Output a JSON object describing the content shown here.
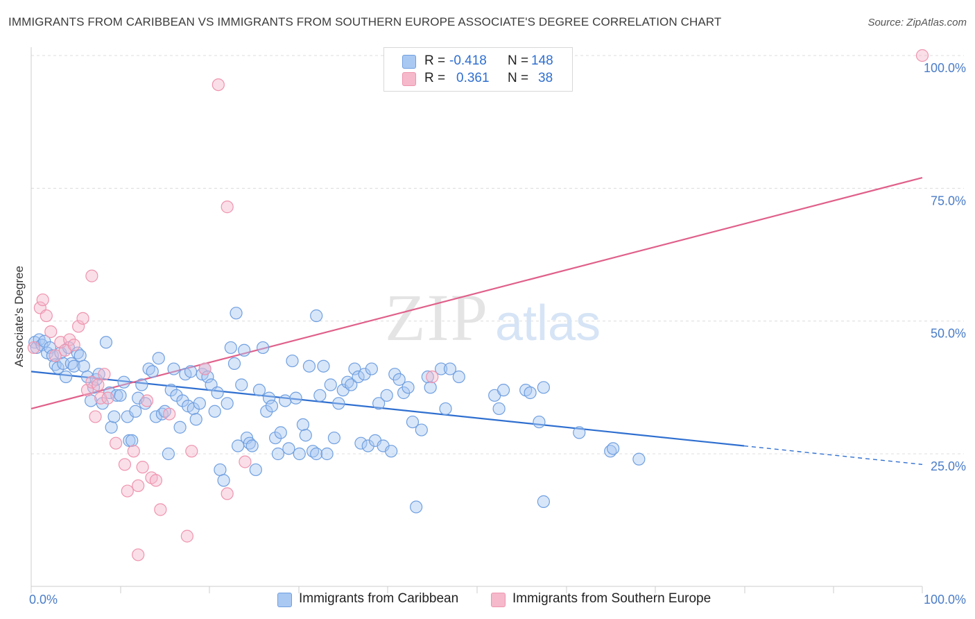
{
  "title": "IMMIGRANTS FROM CARIBBEAN VS IMMIGRANTS FROM SOUTHERN EUROPE ASSOCIATE'S DEGREE CORRELATION CHART",
  "source": "Source: ZipAtlas.com",
  "watermark": {
    "zip": "ZIP",
    "atlas": "atlas"
  },
  "legend": {
    "rows": [
      {
        "r_label": "R =",
        "r_value": "-0.418",
        "n_label": "N =",
        "n_value": "148",
        "color": "#a9c8f2"
      },
      {
        "r_label": "R =",
        "r_value": "0.361",
        "n_label": "N =",
        "n_value": "38",
        "color": "#f5b9cb"
      }
    ]
  },
  "chart_data": {
    "type": "scatter",
    "title": "IMMIGRANTS FROM CARIBBEAN VS IMMIGRANTS FROM SOUTHERN EUROPE ASSOCIATE'S DEGREE CORRELATION CHART",
    "xlabel": "",
    "ylabel": "Associate's Degree",
    "xlim": [
      0,
      100
    ],
    "ylim": [
      0,
      104
    ],
    "x_tick_labels": [
      "0.0%",
      "100.0%"
    ],
    "y_ticks": [
      {
        "value": 25,
        "label": "25.0%"
      },
      {
        "value": 50,
        "label": "50.0%"
      },
      {
        "value": 75,
        "label": "75.0%"
      },
      {
        "value": 100,
        "label": "100.0%"
      }
    ],
    "grid": true,
    "legend_position": "bottom",
    "series": [
      {
        "name": "Immigrants from Caribbean",
        "color": "#6f9fe0",
        "fill": "#a9c8f2",
        "trend": {
          "x0": 0,
          "y0": 40.5,
          "x1": 80,
          "y1": 26.5,
          "dashed_to_x": 100,
          "dashed_to_y": 23.0,
          "color": "#2f6fd0"
        },
        "points": [
          [
            0.4,
            46
          ],
          [
            0.6,
            45
          ],
          [
            0.9,
            46.5
          ],
          [
            1.2,
            45.5
          ],
          [
            1.5,
            46.2
          ],
          [
            1.8,
            44
          ],
          [
            2.1,
            45
          ],
          [
            2.4,
            43.5
          ],
          [
            2.7,
            41.8
          ],
          [
            3.0,
            41.2
          ],
          [
            3.3,
            44
          ],
          [
            3.6,
            42
          ],
          [
            3.9,
            39.5
          ],
          [
            4.2,
            45
          ],
          [
            4.5,
            42
          ],
          [
            4.8,
            41.5
          ],
          [
            5.2,
            44
          ],
          [
            5.5,
            43.5
          ],
          [
            5.9,
            41.5
          ],
          [
            6.3,
            39.5
          ],
          [
            6.7,
            35
          ],
          [
            7.0,
            37.5
          ],
          [
            7.3,
            39
          ],
          [
            7.6,
            40
          ],
          [
            8.0,
            34.5
          ],
          [
            8.4,
            46
          ],
          [
            8.8,
            36.5
          ],
          [
            9.0,
            30
          ],
          [
            9.3,
            32
          ],
          [
            9.6,
            36
          ],
          [
            10.0,
            36
          ],
          [
            10.4,
            38.5
          ],
          [
            10.8,
            32
          ],
          [
            11.0,
            27.5
          ],
          [
            11.3,
            27.5
          ],
          [
            11.7,
            33
          ],
          [
            12.0,
            35.5
          ],
          [
            12.4,
            38
          ],
          [
            12.8,
            34.5
          ],
          [
            13.2,
            41
          ],
          [
            13.6,
            40.5
          ],
          [
            14.0,
            32
          ],
          [
            14.3,
            43
          ],
          [
            14.7,
            32.5
          ],
          [
            15.0,
            33
          ],
          [
            15.4,
            25
          ],
          [
            15.7,
            37
          ],
          [
            16.0,
            41
          ],
          [
            16.3,
            36
          ],
          [
            16.7,
            30
          ],
          [
            17.0,
            35
          ],
          [
            17.3,
            40
          ],
          [
            17.6,
            34
          ],
          [
            17.9,
            40.5
          ],
          [
            18.2,
            33.5
          ],
          [
            18.5,
            31.5
          ],
          [
            18.9,
            34.5
          ],
          [
            19.2,
            40
          ],
          [
            19.5,
            41
          ],
          [
            19.8,
            39.5
          ],
          [
            20.2,
            38
          ],
          [
            20.6,
            33
          ],
          [
            20.9,
            36.5
          ],
          [
            21.2,
            22
          ],
          [
            21.6,
            20
          ],
          [
            22.0,
            34.5
          ],
          [
            22.4,
            45
          ],
          [
            22.8,
            42
          ],
          [
            23.2,
            26.5
          ],
          [
            23.6,
            38
          ],
          [
            23.9,
            44.5
          ],
          [
            24.2,
            28
          ],
          [
            24.5,
            27
          ],
          [
            24.8,
            26.5
          ],
          [
            25.2,
            22
          ],
          [
            25.6,
            37
          ],
          [
            26.0,
            45
          ],
          [
            26.4,
            33
          ],
          [
            26.7,
            35.5
          ],
          [
            27.0,
            34
          ],
          [
            27.4,
            28
          ],
          [
            27.7,
            25
          ],
          [
            28.0,
            29
          ],
          [
            28.5,
            35
          ],
          [
            28.9,
            26
          ],
          [
            29.3,
            42.5
          ],
          [
            29.7,
            35.5
          ],
          [
            30.1,
            25
          ],
          [
            30.5,
            30.5
          ],
          [
            30.8,
            28.5
          ],
          [
            31.2,
            41.5
          ],
          [
            31.6,
            25.5
          ],
          [
            32.0,
            25
          ],
          [
            32.4,
            36
          ],
          [
            32.8,
            41.5
          ],
          [
            33.2,
            25
          ],
          [
            33.6,
            38
          ],
          [
            34.0,
            28
          ],
          [
            34.5,
            34.5
          ],
          [
            35.0,
            37
          ],
          [
            35.5,
            38.5
          ],
          [
            35.9,
            38
          ],
          [
            36.3,
            41
          ],
          [
            36.7,
            39.5
          ],
          [
            37.0,
            27
          ],
          [
            37.4,
            40
          ],
          [
            37.8,
            26.5
          ],
          [
            38.2,
            41
          ],
          [
            38.6,
            27.5
          ],
          [
            39.0,
            34.5
          ],
          [
            39.5,
            26.5
          ],
          [
            39.9,
            36
          ],
          [
            40.4,
            25.5
          ],
          [
            40.8,
            40
          ],
          [
            41.3,
            39
          ],
          [
            41.8,
            36.5
          ],
          [
            42.3,
            37.5
          ],
          [
            42.8,
            31
          ],
          [
            43.2,
            15
          ],
          [
            43.8,
            29.5
          ],
          [
            44.5,
            39.5
          ],
          [
            44.8,
            37.5
          ],
          [
            46.0,
            41
          ],
          [
            46.5,
            33.5
          ],
          [
            47.0,
            41
          ],
          [
            48.0,
            39.5
          ],
          [
            52.0,
            36
          ],
          [
            52.5,
            33.5
          ],
          [
            53.0,
            37
          ],
          [
            55.5,
            37
          ],
          [
            56.0,
            36.5
          ],
          [
            57.5,
            37.5
          ],
          [
            57.0,
            31
          ],
          [
            57.5,
            16
          ],
          [
            61.5,
            29
          ],
          [
            65.0,
            25.5
          ],
          [
            65.3,
            26
          ],
          [
            68.2,
            24
          ]
        ],
        "labeled_outliers": [
          [
            23.0,
            51.5
          ],
          [
            32.0,
            51
          ]
        ]
      },
      {
        "name": "Immigrants from Southern Europe",
        "color": "#ef93ae",
        "fill": "#f5b9cb",
        "trend": {
          "x0": 0,
          "y0": 33.5,
          "x1": 100,
          "y1": 77,
          "color": "#e0608a"
        },
        "points": [
          [
            0.3,
            45
          ],
          [
            1.0,
            52.5
          ],
          [
            1.3,
            54
          ],
          [
            1.7,
            51
          ],
          [
            2.2,
            48
          ],
          [
            2.7,
            43.5
          ],
          [
            3.3,
            46
          ],
          [
            3.8,
            44.5
          ],
          [
            4.3,
            46.5
          ],
          [
            4.8,
            45.5
          ],
          [
            5.3,
            49
          ],
          [
            5.8,
            50.5
          ],
          [
            6.3,
            37
          ],
          [
            6.8,
            38.5
          ],
          [
            7.2,
            32
          ],
          [
            7.5,
            38
          ],
          [
            7.8,
            35.5
          ],
          [
            8.2,
            40
          ],
          [
            8.6,
            35.5
          ],
          [
            9.5,
            27
          ],
          [
            10.5,
            23
          ],
          [
            10.8,
            18
          ],
          [
            11.5,
            25.5
          ],
          [
            12.0,
            19
          ],
          [
            12.5,
            22.5
          ],
          [
            13.0,
            35
          ],
          [
            13.5,
            20.5
          ],
          [
            14.0,
            20
          ],
          [
            14.5,
            14.5
          ],
          [
            15.5,
            32.5
          ],
          [
            17.5,
            9.5
          ],
          [
            18.0,
            25.5
          ],
          [
            19.5,
            41
          ],
          [
            22.0,
            17.5
          ],
          [
            24.0,
            23.5
          ],
          [
            45.0,
            39.5
          ],
          [
            12.0,
            6
          ],
          [
            100.0,
            100
          ]
        ],
        "labeled_outliers": [
          [
            21.0,
            94.5
          ],
          [
            22.0,
            71.5
          ],
          [
            6.8,
            58.5
          ]
        ]
      }
    ]
  },
  "bottom_legend": [
    {
      "label": "Immigrants from Caribbean",
      "color": "#a9c8f2"
    },
    {
      "label": "Immigrants from Southern Europe",
      "color": "#f5b9cb"
    }
  ]
}
